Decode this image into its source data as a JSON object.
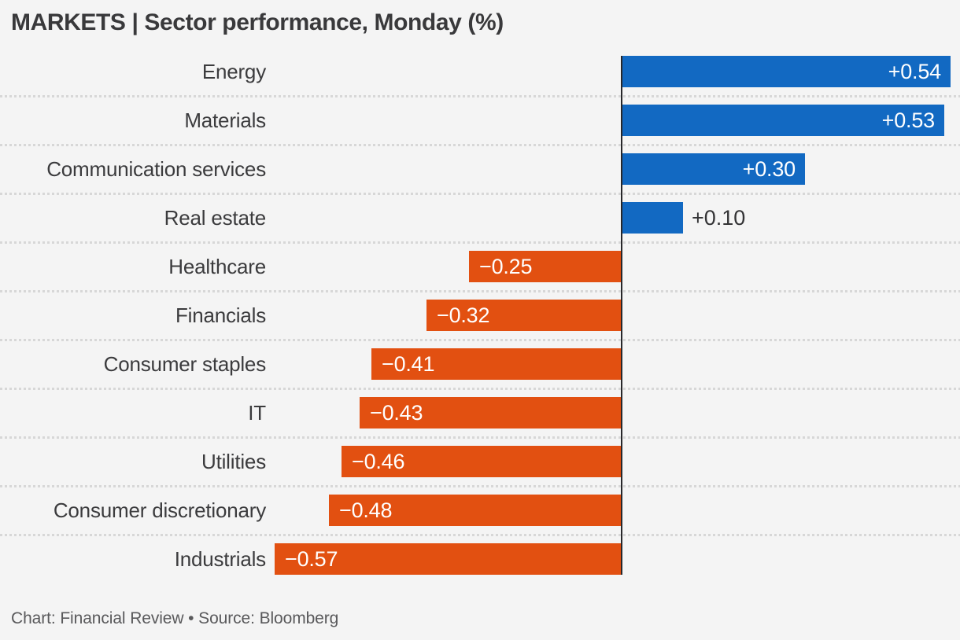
{
  "title": "MARKETS | Sector performance, Monday (%)",
  "footer": "Chart: Financial Review • Source: Bloomberg",
  "colors": {
    "positive_bar": "#1269c2",
    "negative_bar": "#e25011",
    "axis_line": "#27272a",
    "background": "#f4f4f4",
    "gridline": "#d7d7d7",
    "value_label_inside": "#ffffff",
    "value_label_outside": "#333335",
    "category_label": "#3b3b3d",
    "title_text": "#39393b",
    "footer_text": "#59595b"
  },
  "chart_data": {
    "type": "bar",
    "orientation": "horizontal",
    "title": "MARKETS | Sector performance, Monday (%)",
    "xlabel": "",
    "ylabel": "",
    "xlim": [
      -0.62,
      0.56
    ],
    "grid": "dotted horizontal row separators",
    "legend": "none",
    "zero_baseline": true,
    "categories": [
      "Energy",
      "Materials",
      "Communication services",
      "Real estate",
      "Healthcare",
      "Financials",
      "Consumer staples",
      "IT",
      "Utilities",
      "Consumer discretionary",
      "Industrials"
    ],
    "values": [
      0.54,
      0.53,
      0.3,
      0.1,
      -0.25,
      -0.32,
      -0.41,
      -0.43,
      -0.46,
      -0.48,
      -0.57
    ],
    "value_labels": [
      "+0.54",
      "+0.53",
      "+0.30",
      "+0.10",
      "−0.25",
      "−0.32",
      "−0.41",
      "−0.43",
      "−0.46",
      "−0.48",
      "−0.57"
    ]
  }
}
